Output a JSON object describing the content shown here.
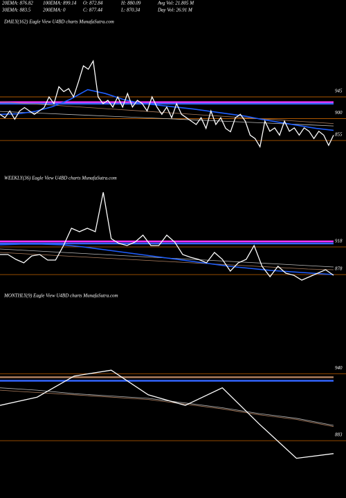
{
  "header": {
    "stats": [
      [
        "20EMA: 876.82",
        "100EMA: 899.14",
        "O: 872.84",
        "H: 880.09",
        "Avg Vol: 21.805 M"
      ],
      [
        "30EMA: 883.5",
        "200EMA: 0",
        "C: 877.44",
        "L: 870.34",
        "Day Vol: 26.91 M"
      ]
    ]
  },
  "chart_data": [
    {
      "type": "line",
      "title": "DAILY(162) Eagle  View  U4BD charts MunafaSutra.com",
      "ylim": [
        838,
        1095
      ],
      "yticks": [
        855,
        900,
        945
      ],
      "levels": [
        {
          "value": 934,
          "color": "#ff33ff"
        },
        {
          "value": 931,
          "color": "#3366ff"
        }
      ],
      "series": [
        {
          "color": "#bbbbbb",
          "values": [
            915,
            913,
            911,
            909,
            907,
            905,
            903,
            901,
            899,
            897,
            895,
            893,
            891,
            889,
            887,
            885
          ]
        },
        {
          "color": "#b08060",
          "values": [
            935,
            932,
            929,
            926,
            923,
            920,
            917,
            914,
            911,
            908,
            905,
            902,
            899,
            896,
            893,
            890
          ]
        },
        {
          "color": "#1f5fff",
          "values": [
            909,
            910,
            915,
            925,
            940,
            960,
            952,
            940,
            932,
            928,
            924,
            920,
            915,
            910,
            905,
            898,
            892,
            886,
            880,
            876
          ]
        },
        {
          "color": "#ffffff",
          "values": [
            909,
            902,
            916,
            899,
            916,
            923,
            916,
            909,
            916,
            923,
            945,
            931,
            966,
            956,
            962,
            945,
            976,
            1009,
            1002,
            1019,
            945,
            931,
            938,
            924,
            945,
            924,
            952,
            924,
            938,
            931,
            916,
            945,
            924,
            909,
            924,
            902,
            931,
            909,
            902,
            895,
            888,
            902,
            880,
            916,
            888,
            902,
            880,
            873,
            902,
            909,
            895,
            866,
            859,
            842,
            895,
            874,
            881,
            866,
            895,
            874,
            881,
            866,
            881,
            874,
            859,
            874,
            866,
            845,
            866
          ]
        }
      ]
    },
    {
      "type": "line",
      "title": "WEEKLY(36) Eagle  View  U4BD charts MunafaSutra.com",
      "ylim": [
        865,
        1035
      ],
      "yticks": [
        878,
        918
      ],
      "levels": [
        {
          "value": 926,
          "color": "#ff33ff"
        },
        {
          "value": 923,
          "color": "#3366ff"
        }
      ],
      "series": [
        {
          "color": "#bbbbbb",
          "values": [
            915,
            913,
            911,
            909,
            907,
            905,
            903,
            901,
            899,
            897,
            895,
            893,
            891,
            889
          ]
        },
        {
          "color": "#b08060",
          "values": [
            910,
            908,
            906,
            904,
            902,
            900,
            898,
            896,
            894,
            892,
            890,
            888,
            886,
            885
          ]
        },
        {
          "color": "#1f5fff",
          "values": [
            921,
            922,
            922,
            921,
            918,
            914,
            910,
            906,
            902,
            898,
            894,
            890,
            887,
            884,
            882,
            880,
            878
          ]
        },
        {
          "color": "#ffffff",
          "values": [
            907,
            907,
            900,
            895,
            905,
            907,
            899,
            899,
            920,
            945,
            940,
            945,
            940,
            997,
            930,
            923,
            920,
            925,
            935,
            920,
            920,
            935,
            925,
            907,
            903,
            900,
            895,
            910,
            900,
            883,
            895,
            900,
            920,
            890,
            875,
            890,
            880,
            877,
            870,
            875,
            880,
            885,
            877
          ]
        }
      ]
    },
    {
      "type": "line",
      "title": "MONTHLY(9) Eagle  View  U4BD charts MunafaSutra.com",
      "ylim": [
        846,
        999
      ],
      "yticks": [
        883,
        940
      ],
      "levels": [
        {
          "value": 937,
          "color": "#b08060"
        },
        {
          "value": 934,
          "color": "#3366ff"
        }
      ],
      "series": [
        {
          "color": "#bbbbbb",
          "values": [
            928,
            926,
            923,
            921,
            919,
            915,
            911,
            906,
            902,
            896
          ]
        },
        {
          "color": "#b08060",
          "values": [
            926,
            924,
            922,
            920,
            918,
            914,
            910,
            905,
            901,
            895
          ]
        },
        {
          "color": "#ffffff",
          "values": [
            913,
            920,
            938,
            943,
            922,
            913,
            928,
            897,
            868,
            872
          ]
        }
      ]
    }
  ]
}
